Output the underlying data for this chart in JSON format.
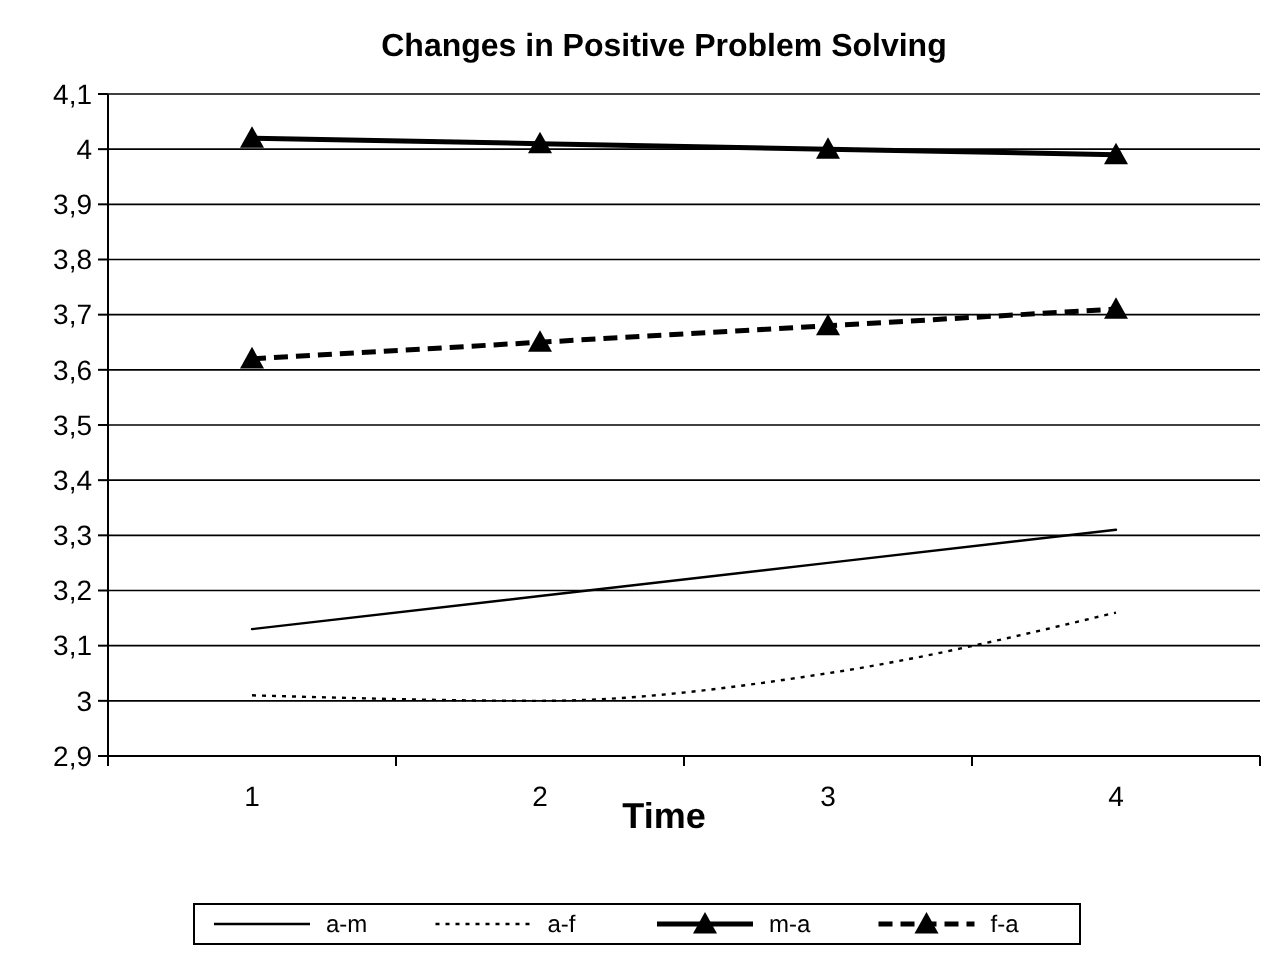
{
  "chart_data": {
    "type": "line",
    "title": "Changes in Positive Problem Solving",
    "xlabel": "Time",
    "categories": [
      "1",
      "2",
      "3",
      "4"
    ],
    "series": [
      {
        "name": "a-m",
        "color": "#000000",
        "values": [
          3.13,
          3.19,
          3.25,
          3.31
        ],
        "marker": "none",
        "line_style": "solid"
      },
      {
        "name": "a-f",
        "color": "#000000",
        "values": [
          3.01,
          3.0,
          3.05,
          3.16
        ],
        "marker": "none",
        "line_style": "dotted"
      },
      {
        "name": "m-a",
        "color": "#000000",
        "values": [
          4.02,
          4.01,
          4.0,
          3.99
        ],
        "marker": "triangle",
        "line_style": "solid"
      },
      {
        "name": "f-a",
        "color": "#000000",
        "values": [
          3.62,
          3.65,
          3.68,
          3.71
        ],
        "marker": "triangle",
        "line_style": "dashed"
      }
    ],
    "ylim": [
      2.9,
      4.1
    ],
    "yticks": [
      {
        "value": 2.9,
        "label": "2,9"
      },
      3,
      {
        "value": 3.1,
        "label": "3,1"
      },
      {
        "value": 3.2,
        "label": "3,2"
      },
      {
        "value": 3.3,
        "label": "3,3"
      },
      {
        "value": 3.4,
        "label": "3,4"
      },
      {
        "value": 3.5,
        "label": "3,5"
      },
      {
        "value": 3.6,
        "label": "3,6"
      },
      {
        "value": 3.7,
        "label": "3,7"
      },
      {
        "value": 3.8,
        "label": "3,8"
      },
      {
        "value": 3.9,
        "label": "3,9"
      },
      4,
      {
        "value": 4.1,
        "label": "4,1"
      }
    ],
    "grid": "y",
    "legend": "bottom"
  }
}
